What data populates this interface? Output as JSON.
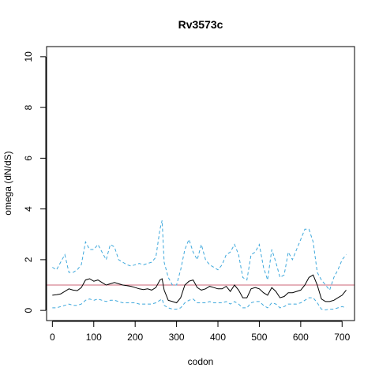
{
  "chart_data": {
    "type": "line",
    "title": "Rv3573c",
    "xlabel": "codon",
    "ylabel": "omega (dN/dS)",
    "xlim": [
      -14,
      730
    ],
    "ylim": [
      -0.4,
      10.4
    ],
    "x_ticks": [
      0,
      100,
      200,
      300,
      400,
      500,
      600,
      700
    ],
    "y_ticks": [
      0,
      2,
      4,
      6,
      8,
      10
    ],
    "reference_line": {
      "y": 1,
      "color": "#cc6677"
    },
    "grid": false,
    "legend": "none",
    "series": [
      {
        "style": "solid",
        "color": "#000000",
        "x": [
          0,
          10,
          20,
          30,
          40,
          50,
          60,
          70,
          80,
          90,
          100,
          110,
          120,
          130,
          140,
          150,
          160,
          170,
          180,
          190,
          200,
          210,
          220,
          230,
          240,
          250,
          260,
          265,
          270,
          280,
          290,
          300,
          310,
          320,
          330,
          340,
          350,
          360,
          370,
          380,
          390,
          400,
          410,
          420,
          430,
          440,
          450,
          460,
          470,
          480,
          490,
          500,
          510,
          520,
          530,
          540,
          550,
          560,
          570,
          580,
          590,
          600,
          610,
          620,
          630,
          640,
          650,
          660,
          670,
          680,
          690,
          700,
          710
        ],
        "y": [
          0.6,
          0.62,
          0.65,
          0.75,
          0.85,
          0.8,
          0.78,
          0.9,
          1.2,
          1.25,
          1.15,
          1.2,
          1.1,
          1.0,
          1.05,
          1.1,
          1.05,
          1.0,
          0.98,
          0.95,
          0.9,
          0.85,
          0.82,
          0.85,
          0.8,
          0.9,
          1.2,
          1.25,
          0.8,
          0.4,
          0.35,
          0.3,
          0.5,
          1.0,
          1.15,
          1.2,
          0.9,
          0.8,
          0.85,
          0.95,
          0.9,
          0.85,
          0.85,
          0.95,
          0.75,
          1.0,
          0.8,
          0.5,
          0.5,
          0.85,
          0.9,
          0.85,
          0.7,
          0.6,
          0.9,
          0.75,
          0.5,
          0.55,
          0.7,
          0.7,
          0.75,
          0.8,
          1.0,
          1.3,
          1.4,
          1.0,
          0.45,
          0.35,
          0.35,
          0.4,
          0.5,
          0.6,
          0.8
        ]
      },
      {
        "style": "dashed",
        "color": "#3ea8dc",
        "x": [
          0,
          10,
          20,
          30,
          40,
          50,
          60,
          70,
          80,
          90,
          100,
          110,
          120,
          130,
          140,
          150,
          160,
          170,
          180,
          190,
          200,
          210,
          220,
          230,
          240,
          250,
          260,
          265,
          270,
          280,
          290,
          300,
          310,
          320,
          330,
          340,
          350,
          360,
          370,
          380,
          390,
          400,
          410,
          420,
          430,
          440,
          450,
          460,
          470,
          480,
          490,
          500,
          510,
          520,
          530,
          540,
          550,
          560,
          570,
          580,
          590,
          600,
          610,
          620,
          630,
          640,
          650,
          660,
          670,
          680,
          690,
          700,
          710
        ],
        "y": [
          1.7,
          1.6,
          1.9,
          2.2,
          1.5,
          1.5,
          1.6,
          1.8,
          2.7,
          2.4,
          2.4,
          2.6,
          2.3,
          2.0,
          2.6,
          2.5,
          2.0,
          1.9,
          1.8,
          1.75,
          1.8,
          1.85,
          1.8,
          1.85,
          1.9,
          2.1,
          3.2,
          3.55,
          1.9,
          1.3,
          1.0,
          1.0,
          1.6,
          2.4,
          2.8,
          2.3,
          2.0,
          2.6,
          2.0,
          1.8,
          1.7,
          1.6,
          1.8,
          2.2,
          2.3,
          2.6,
          2.2,
          1.3,
          1.2,
          2.2,
          2.3,
          2.6,
          1.7,
          1.2,
          2.4,
          1.9,
          1.3,
          1.4,
          2.3,
          2.0,
          2.4,
          2.8,
          3.2,
          3.2,
          2.7,
          1.5,
          1.2,
          1.0,
          0.8,
          1.3,
          1.6,
          2.0,
          2.2
        ]
      },
      {
        "style": "dashed",
        "color": "#3ea8dc",
        "x": [
          0,
          10,
          20,
          30,
          40,
          50,
          60,
          70,
          80,
          90,
          100,
          110,
          120,
          130,
          140,
          150,
          160,
          170,
          180,
          190,
          200,
          210,
          220,
          230,
          240,
          250,
          260,
          265,
          270,
          280,
          290,
          300,
          310,
          320,
          330,
          340,
          350,
          360,
          370,
          380,
          390,
          400,
          410,
          420,
          430,
          440,
          450,
          460,
          470,
          480,
          490,
          500,
          510,
          520,
          530,
          540,
          550,
          560,
          570,
          580,
          590,
          600,
          610,
          620,
          630,
          640,
          650,
          660,
          670,
          680,
          690,
          700,
          710
        ],
        "y": [
          0.1,
          0.1,
          0.15,
          0.2,
          0.25,
          0.2,
          0.2,
          0.25,
          0.4,
          0.45,
          0.4,
          0.45,
          0.4,
          0.35,
          0.4,
          0.4,
          0.35,
          0.3,
          0.3,
          0.3,
          0.3,
          0.25,
          0.25,
          0.25,
          0.25,
          0.3,
          0.4,
          0.45,
          0.2,
          0.1,
          0.05,
          0.05,
          0.1,
          0.3,
          0.4,
          0.45,
          0.3,
          0.3,
          0.3,
          0.35,
          0.3,
          0.3,
          0.3,
          0.35,
          0.25,
          0.35,
          0.25,
          0.1,
          0.1,
          0.3,
          0.35,
          0.35,
          0.2,
          0.1,
          0.3,
          0.25,
          0.1,
          0.15,
          0.25,
          0.25,
          0.25,
          0.3,
          0.4,
          0.5,
          0.5,
          0.3,
          0.05,
          0.02,
          0.05,
          0.05,
          0.1,
          0.15,
          0.1
        ]
      }
    ]
  }
}
